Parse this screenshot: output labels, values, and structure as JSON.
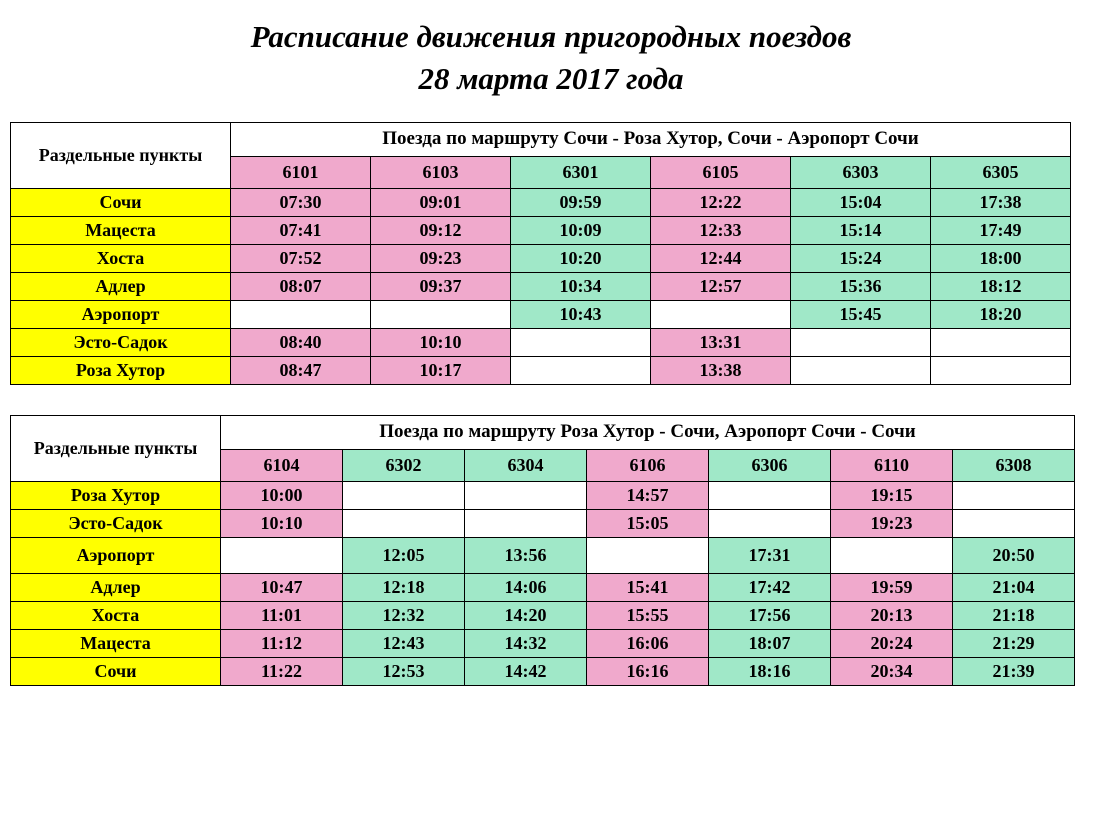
{
  "title_line1": "Расписание движения пригородных поездов",
  "title_line2": "28 марта 2017 года",
  "corner_label": "Раздельные пункты",
  "colors": {
    "pink": "#f0a9cc",
    "green": "#a0e8c8",
    "yellow": "#ffff00",
    "white": "#ffffff",
    "border": "#000000"
  },
  "table1": {
    "route_title": "Поезда по маршруту Сочи - Роза Хутор, Сочи - Аэропорт Сочи",
    "col_widths": {
      "station": 220,
      "time": 140
    },
    "trains": [
      {
        "num": "6101",
        "cls": "pink"
      },
      {
        "num": "6103",
        "cls": "pink"
      },
      {
        "num": "6301",
        "cls": "green"
      },
      {
        "num": "6105",
        "cls": "pink"
      },
      {
        "num": "6303",
        "cls": "green"
      },
      {
        "num": "6305",
        "cls": "green"
      }
    ],
    "stations": [
      {
        "name": "Сочи",
        "times": [
          "07:30",
          "09:01",
          "09:59",
          "12:22",
          "15:04",
          "17:38"
        ]
      },
      {
        "name": "Мацеста",
        "times": [
          "07:41",
          "09:12",
          "10:09",
          "12:33",
          "15:14",
          "17:49"
        ]
      },
      {
        "name": "Хоста",
        "times": [
          "07:52",
          "09:23",
          "10:20",
          "12:44",
          "15:24",
          "18:00"
        ]
      },
      {
        "name": "Адлер",
        "times": [
          "08:07",
          "09:37",
          "10:34",
          "12:57",
          "15:36",
          "18:12"
        ]
      },
      {
        "name": "Аэропорт",
        "times": [
          "",
          "",
          "10:43",
          "",
          "15:45",
          "18:20"
        ]
      },
      {
        "name": "Эсто-Садок",
        "times": [
          "08:40",
          "10:10",
          "",
          "13:31",
          "",
          ""
        ]
      },
      {
        "name": "Роза Хутор",
        "times": [
          "08:47",
          "10:17",
          "",
          "13:38",
          "",
          ""
        ]
      }
    ]
  },
  "table2": {
    "route_title": "Поезда по маршруту Роза Хутор - Сочи, Аэропорт Сочи - Сочи",
    "col_widths": {
      "station": 210,
      "time": 122
    },
    "trains": [
      {
        "num": "6104",
        "cls": "pink"
      },
      {
        "num": "6302",
        "cls": "green"
      },
      {
        "num": "6304",
        "cls": "green"
      },
      {
        "num": "6106",
        "cls": "pink"
      },
      {
        "num": "6306",
        "cls": "green"
      },
      {
        "num": "6110",
        "cls": "pink"
      },
      {
        "num": "6308",
        "cls": "green"
      }
    ],
    "stations": [
      {
        "name": "Роза Хутор",
        "times": [
          "10:00",
          "",
          "",
          "14:57",
          "",
          "19:15",
          ""
        ]
      },
      {
        "name": "Эсто-Садок",
        "times": [
          "10:10",
          "",
          "",
          "15:05",
          "",
          "19:23",
          ""
        ]
      },
      {
        "name": "Аэропорт",
        "times": [
          "",
          "12:05",
          "13:56",
          "",
          "17:31",
          "",
          "20:50"
        ],
        "airport": true
      },
      {
        "name": "Адлер",
        "times": [
          "10:47",
          "12:18",
          "14:06",
          "15:41",
          "17:42",
          "19:59",
          "21:04"
        ]
      },
      {
        "name": "Хоста",
        "times": [
          "11:01",
          "12:32",
          "14:20",
          "15:55",
          "17:56",
          "20:13",
          "21:18"
        ]
      },
      {
        "name": "Мацеста",
        "times": [
          "11:12",
          "12:43",
          "14:32",
          "16:06",
          "18:07",
          "20:24",
          "21:29"
        ]
      },
      {
        "name": "Сочи",
        "times": [
          "11:22",
          "12:53",
          "14:42",
          "16:16",
          "18:16",
          "20:34",
          "21:39"
        ]
      }
    ]
  }
}
